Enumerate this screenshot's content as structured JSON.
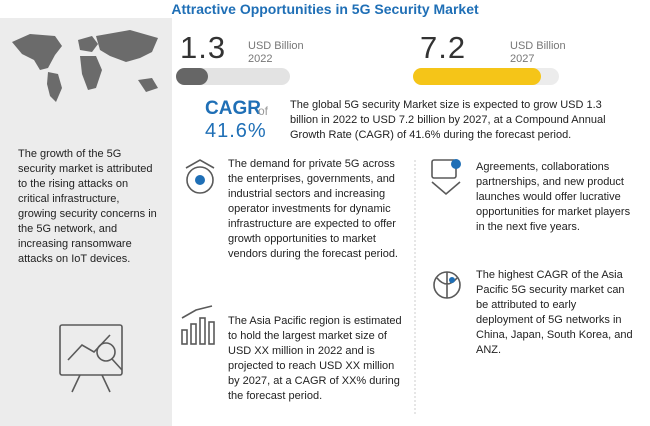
{
  "header": {
    "title": "Attractive Opportunities in 5G Security Market"
  },
  "stats": [
    {
      "value": "1.3",
      "unit": "USD Billion",
      "year": "2022"
    },
    {
      "value": "7.2",
      "unit": "USD Billion",
      "year": "2027"
    }
  ],
  "cagr": {
    "label": "CAGR",
    "suffix": "of",
    "value": "41.6%",
    "text": "The global 5G security Market size is expected to grow USD 1.3 billion in 2022 to USD 7.2 billion by 2027, at a Compound Annual Growth Rate (CAGR) of 41.6%  during the forecast period."
  },
  "sidebar": {
    "text": "The growth of the 5G security market is attributed to the rising attacks on critical infrastructure, growing security concerns in the 5G network, and increasing ransomware attacks on IoT devices."
  },
  "points": [
    {
      "text": "The demand for private 5G across the enterprises, governments, and industrial sectors and increasing operator investments for dynamic infrastructure are expected to offer growth opportunities to market vendors during the forecast period."
    },
    {
      "text": "The Asia Pacific region is estimated to hold the largest market size of USD XX million in 2022 and is projected to reach USD XX million by 2027, at a CAGR of XX% during the forecast period."
    },
    {
      "text": "Agreements, collaborations partnerships, and new product launches would offer lucrative opportunities for market players in the next five years."
    },
    {
      "text": "The highest CAGR of the Asia Pacific 5G security market can be attributed to early deployment of 5G networks in China, Japan, South Korea, and ANZ."
    }
  ]
}
